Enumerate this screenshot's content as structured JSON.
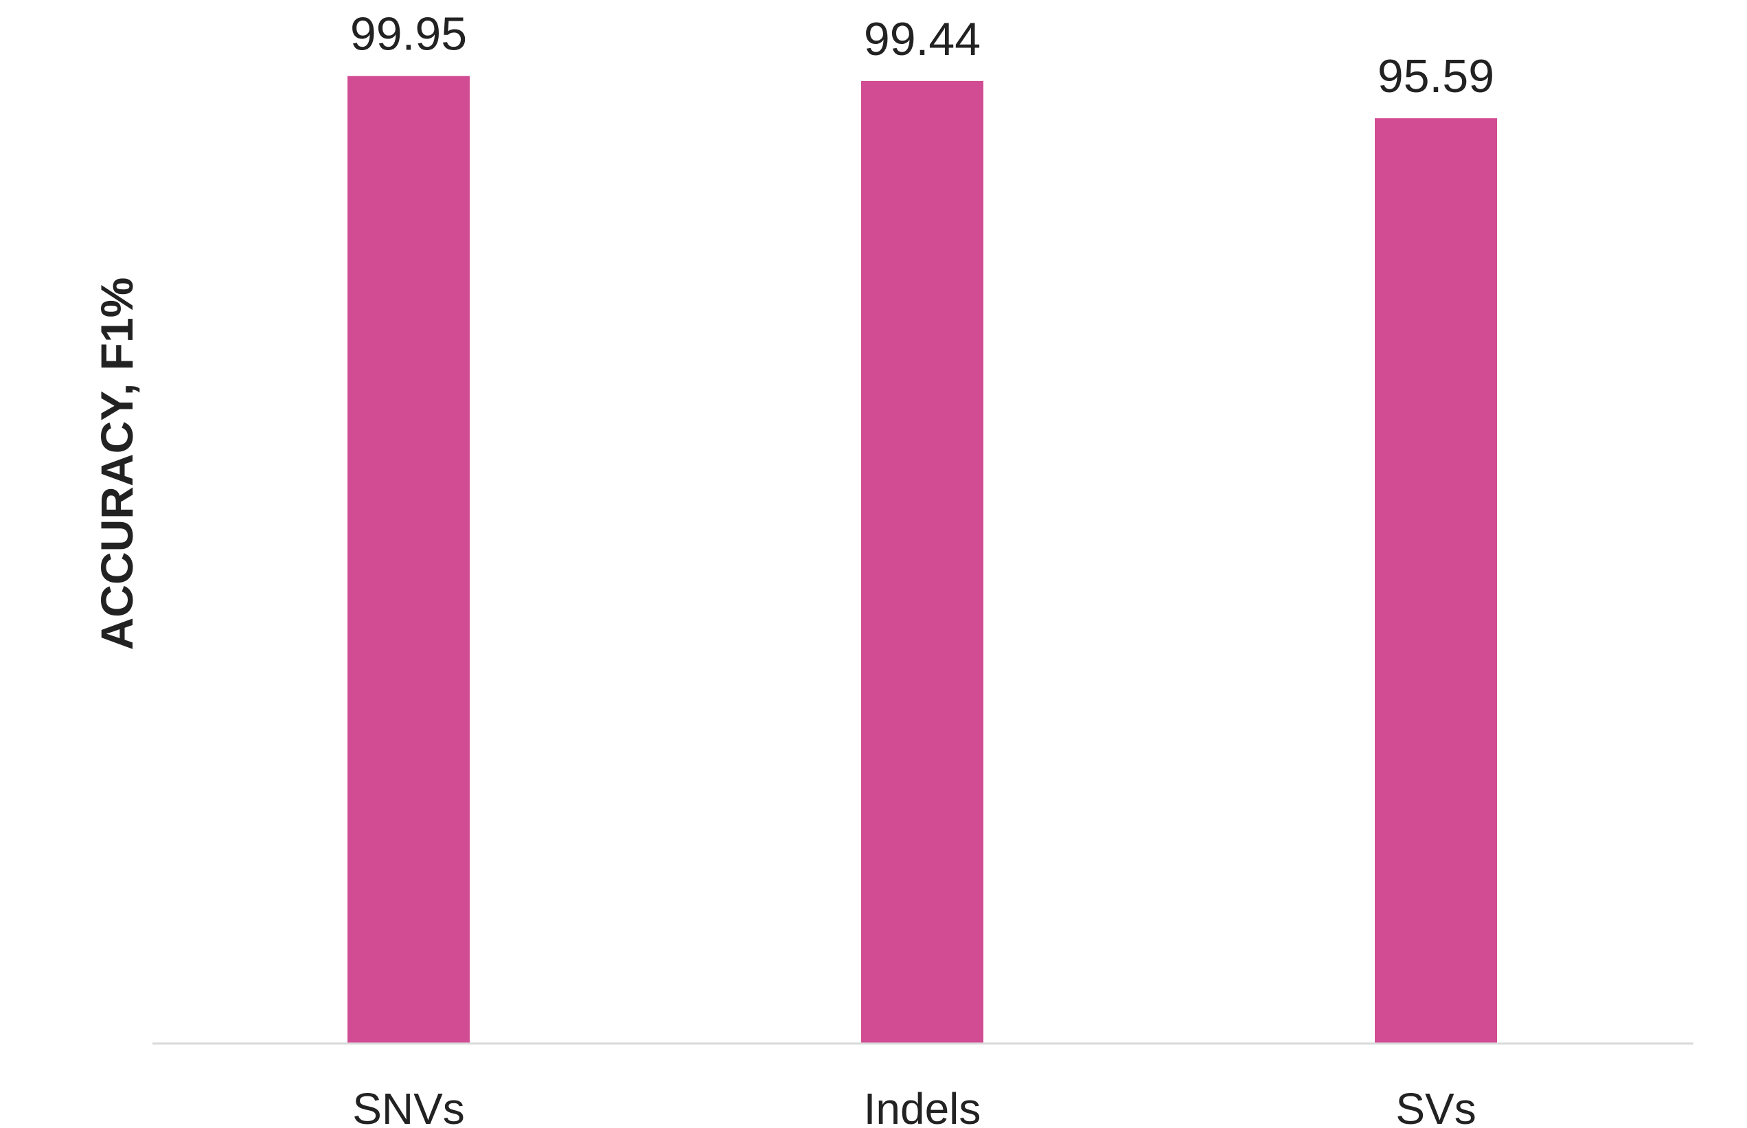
{
  "chart_data": {
    "type": "bar",
    "categories": [
      "SNVs",
      "Indels",
      "SVs"
    ],
    "values": [
      99.95,
      99.44,
      95.59
    ],
    "data_labels": [
      "99.95",
      "99.44",
      "95.59"
    ],
    "title": "",
    "xlabel": "",
    "ylabel": "ACCURACY, F1%",
    "ylim": [
      0,
      100
    ],
    "grid": false,
    "legend": "none",
    "bar_color": "#D14C93",
    "axis_color": "#D9D9D9",
    "text_color": "#222222"
  }
}
